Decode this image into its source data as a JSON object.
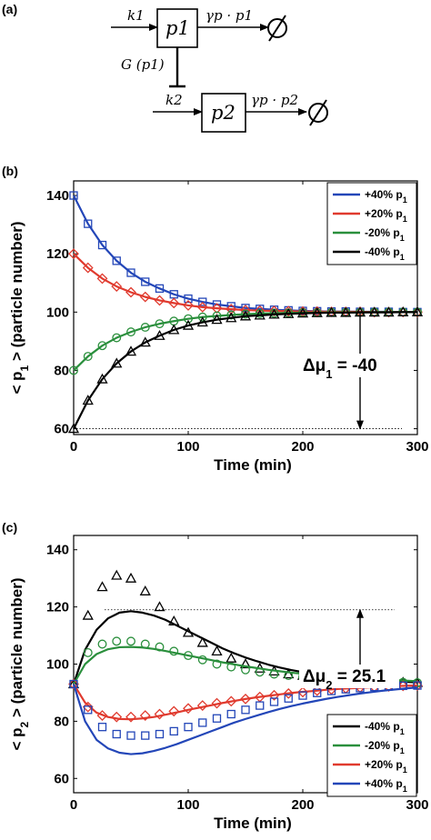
{
  "panel_labels": {
    "a": "(a)",
    "b": "(b)",
    "c": "(c)"
  },
  "diagram": {
    "k1": "k1",
    "p1": "p1",
    "gamma_p1": "γp · p1",
    "g_p1": "G (p1)",
    "k2": "k2",
    "p2": "p2",
    "gamma_p2": "γp · p2",
    "empty_set": "∅"
  },
  "chart_data": [
    {
      "type": "line",
      "panel": "b",
      "title": "",
      "xlabel": "Time (min)",
      "ylabel": "< p1 > (particle number)",
      "xlim": [
        0,
        300
      ],
      "ylim": [
        58,
        145
      ],
      "xticks": [
        0,
        100,
        200,
        300
      ],
      "yticks": [
        60,
        80,
        100,
        120,
        140
      ],
      "grid": false,
      "legend_position": "top-right",
      "annotation": {
        "text": "Δμ1 = -40",
        "x": 250,
        "from": 100,
        "to": 60
      },
      "reference_line": {
        "y": 60,
        "style": "dotted"
      },
      "series": [
        {
          "name": "+40% p1",
          "color": "#2346b8",
          "marker": "square",
          "x": [
            0,
            12.5,
            25,
            37.5,
            50,
            62.5,
            75,
            87.5,
            100,
            112.5,
            125,
            137.5,
            150,
            162.5,
            175,
            187.5,
            200,
            212.5,
            225,
            237.5,
            250,
            262.5,
            275,
            287.5,
            300
          ],
          "values": [
            140,
            130.3,
            123.0,
            117.6,
            113.5,
            110.4,
            108.1,
            106.1,
            104.6,
            103.5,
            102.6,
            102.0,
            101.4,
            101.1,
            100.8,
            100.6,
            100.4,
            100.3,
            100.2,
            100.2,
            100.1,
            100.1,
            100.1,
            100.0,
            100.0
          ]
        },
        {
          "name": "+20% p1",
          "color": "#e03a2e",
          "marker": "diamond",
          "x": [
            0,
            12.5,
            25,
            37.5,
            50,
            62.5,
            75,
            87.5,
            100,
            112.5,
            125,
            137.5,
            150,
            162.5,
            175,
            187.5,
            200,
            212.5,
            225,
            237.5,
            250,
            262.5,
            275,
            287.5,
            300
          ],
          "values": [
            120,
            115.2,
            111.5,
            108.8,
            106.8,
            105.2,
            104.0,
            103.1,
            102.3,
            101.7,
            101.3,
            101.0,
            100.7,
            100.5,
            100.4,
            100.3,
            100.2,
            100.2,
            100.1,
            100.1,
            100.1,
            100.0,
            100.0,
            100.0,
            100.0
          ]
        },
        {
          "name": "-20% p1",
          "color": "#2a8f3c",
          "marker": "circle",
          "x": [
            0,
            12.5,
            25,
            37.5,
            50,
            62.5,
            75,
            87.5,
            100,
            112.5,
            125,
            137.5,
            150,
            162.5,
            175,
            187.5,
            200,
            212.5,
            225,
            237.5,
            250,
            262.5,
            275,
            287.5,
            300
          ],
          "values": [
            80,
            84.8,
            88.5,
            91.2,
            93.2,
            94.8,
            96.0,
            96.9,
            97.7,
            98.3,
            98.7,
            99.0,
            99.3,
            99.5,
            99.6,
            99.7,
            99.8,
            99.8,
            99.9,
            99.9,
            99.9,
            100.0,
            100.0,
            100.0,
            100.0
          ]
        },
        {
          "name": "-40% p1",
          "color": "#000000",
          "marker": "triangle",
          "x": [
            0,
            12.5,
            25,
            37.5,
            50,
            62.5,
            75,
            87.5,
            100,
            112.5,
            125,
            137.5,
            150,
            162.5,
            175,
            187.5,
            200,
            212.5,
            225,
            237.5,
            250,
            262.5,
            275,
            287.5,
            300
          ],
          "values": [
            60,
            69.7,
            77.0,
            82.4,
            86.5,
            89.6,
            91.9,
            93.9,
            95.4,
            96.5,
            97.4,
            98.0,
            98.6,
            98.9,
            99.2,
            99.4,
            99.6,
            99.7,
            99.8,
            99.8,
            99.9,
            99.9,
            99.9,
            100.0,
            100.0
          ]
        }
      ]
    },
    {
      "type": "line",
      "panel": "c",
      "title": "",
      "xlabel": "Time (min)",
      "ylabel": "< p2 > (particle number)",
      "xlim": [
        0,
        300
      ],
      "ylim": [
        55,
        145
      ],
      "xticks": [
        0,
        100,
        200,
        300
      ],
      "yticks": [
        60,
        80,
        100,
        120,
        140
      ],
      "grid": false,
      "legend_position": "bottom-right",
      "annotation": {
        "text": "Δμ2 = 25.1",
        "x": 250,
        "from": 93,
        "to": 119
      },
      "reference_line": {
        "y": 119,
        "style": "dotted"
      },
      "series": [
        {
          "name": "-40% p1",
          "color": "#000000",
          "marker": "triangle",
          "line_x": [
            0,
            10,
            20,
            30,
            40,
            50,
            60,
            70,
            80,
            90,
            100,
            110,
            120,
            130,
            140,
            150,
            160,
            170,
            180,
            190,
            200,
            210,
            220,
            230,
            240,
            250,
            260,
            270,
            280,
            290,
            300
          ],
          "line_values": [
            93,
            105,
            112,
            116,
            118,
            118.5,
            118,
            117,
            115.5,
            113.5,
            111.5,
            109.5,
            107.5,
            105.5,
            103.8,
            102.3,
            101,
            99.8,
            98.8,
            97.9,
            97.2,
            96.6,
            96.1,
            95.6,
            95.2,
            94.8,
            94.5,
            94.2,
            94,
            93.8,
            93.6
          ],
          "marker_x": [
            0,
            12.5,
            25,
            37.5,
            50,
            62.5,
            75,
            87.5,
            100,
            112.5,
            125,
            137.5,
            150,
            162.5,
            175,
            187.5,
            200,
            212.5,
            225,
            237.5,
            250,
            262.5,
            275,
            287.5,
            300
          ],
          "marker_values": [
            93,
            117,
            127,
            131,
            130,
            125.5,
            120,
            115,
            111,
            107.5,
            104.5,
            102,
            100,
            98.5,
            97.5,
            96.5,
            96,
            95.5,
            95,
            94.5,
            94.3,
            94,
            93.8,
            93.6,
            93.5
          ]
        },
        {
          "name": "-20% p1",
          "color": "#2a8f3c",
          "marker": "circle",
          "line_x": [
            0,
            10,
            20,
            30,
            40,
            50,
            60,
            70,
            80,
            90,
            100,
            110,
            120,
            130,
            140,
            150,
            160,
            170,
            180,
            190,
            200,
            210,
            220,
            230,
            240,
            250,
            260,
            270,
            280,
            290,
            300
          ],
          "line_values": [
            93,
            100,
            103.5,
            105.2,
            105.9,
            106,
            105.8,
            105.3,
            104.6,
            103.8,
            103,
            102.2,
            101.4,
            100.6,
            99.9,
            99.2,
            98.6,
            98,
            97.5,
            97,
            96.6,
            96.2,
            95.9,
            95.6,
            95.3,
            95,
            94.8,
            94.6,
            94.4,
            94.2,
            94
          ],
          "marker_x": [
            0,
            12.5,
            25,
            37.5,
            50,
            62.5,
            75,
            87.5,
            100,
            112.5,
            125,
            137.5,
            150,
            162.5,
            175,
            187.5,
            200,
            212.5,
            225,
            237.5,
            250,
            262.5,
            275,
            287.5,
            300
          ],
          "marker_values": [
            93,
            104,
            107,
            108,
            108,
            107,
            106,
            104.5,
            103,
            101.5,
            100,
            99,
            98,
            97.2,
            96.5,
            96,
            95.5,
            95,
            94.7,
            94.4,
            94.2,
            94,
            93.8,
            93.6,
            93.5
          ]
        },
        {
          "name": "+20% p1",
          "color": "#e03a2e",
          "marker": "diamond",
          "line_x": [
            0,
            10,
            20,
            30,
            40,
            50,
            60,
            70,
            80,
            90,
            100,
            110,
            120,
            130,
            140,
            150,
            160,
            170,
            180,
            190,
            200,
            210,
            220,
            230,
            240,
            250,
            260,
            270,
            280,
            290,
            300
          ],
          "line_values": [
            93,
            86.5,
            83,
            81.5,
            80.8,
            80.7,
            81,
            81.5,
            82.3,
            83.1,
            84,
            84.8,
            85.6,
            86.4,
            87.1,
            87.8,
            88.4,
            88.9,
            89.4,
            89.9,
            90.3,
            90.6,
            91,
            91.3,
            91.5,
            91.7,
            91.9,
            92.1,
            92.3,
            92.4,
            92.5
          ],
          "marker_x": [
            0,
            12.5,
            25,
            37.5,
            50,
            62.5,
            75,
            87.5,
            100,
            112.5,
            125,
            137.5,
            150,
            162.5,
            175,
            187.5,
            200,
            212.5,
            225,
            237.5,
            250,
            262.5,
            275,
            287.5,
            300
          ],
          "marker_values": [
            93,
            85,
            82,
            81.5,
            81.5,
            82,
            82.5,
            83.5,
            84.5,
            85.5,
            86.3,
            87,
            87.8,
            88.5,
            89.1,
            89.7,
            90.2,
            90.7,
            91.1,
            91.5,
            91.8,
            92,
            92.2,
            92.4,
            92.5
          ]
        },
        {
          "name": "+40% p1",
          "color": "#2346b8",
          "marker": "square",
          "line_x": [
            0,
            10,
            20,
            30,
            40,
            50,
            60,
            70,
            80,
            90,
            100,
            110,
            120,
            130,
            140,
            150,
            160,
            170,
            180,
            190,
            200,
            210,
            220,
            230,
            240,
            250,
            260,
            270,
            280,
            290,
            300
          ],
          "line_values": [
            93,
            80,
            73.5,
            70.5,
            69,
            68.5,
            68.8,
            69.6,
            70.7,
            72,
            73.5,
            75,
            76.5,
            78,
            79.5,
            80.8,
            82,
            83.2,
            84.3,
            85.3,
            86.2,
            87,
            87.8,
            88.5,
            89.1,
            89.7,
            90.2,
            90.7,
            91.1,
            91.5,
            91.8
          ],
          "marker_x": [
            0,
            12.5,
            25,
            37.5,
            50,
            62.5,
            75,
            87.5,
            100,
            112.5,
            125,
            137.5,
            150,
            162.5,
            175,
            187.5,
            200,
            212.5,
            225,
            237.5,
            250,
            262.5,
            275,
            287.5,
            300
          ],
          "marker_values": [
            93,
            84,
            78,
            75.5,
            75,
            75,
            75.5,
            76.5,
            78,
            79.5,
            81,
            82.5,
            84,
            85.5,
            86.8,
            88,
            89,
            89.9,
            90.6,
            91.2,
            91.6,
            92,
            92.2,
            92.4,
            92.5
          ]
        }
      ]
    }
  ]
}
